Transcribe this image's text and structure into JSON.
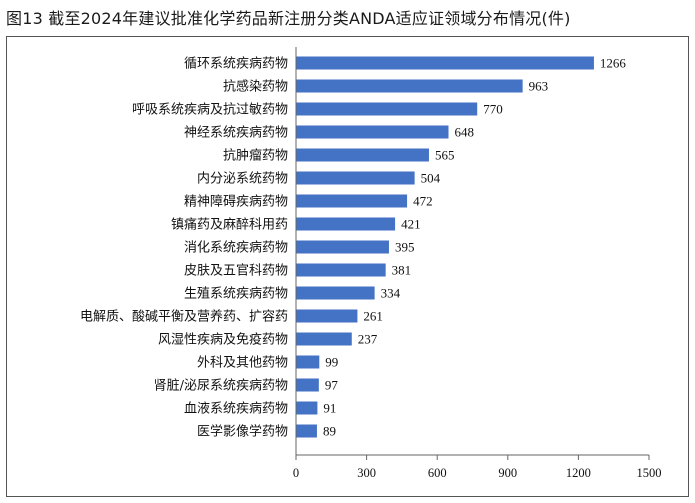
{
  "figure": {
    "title": "图13    截至2024年建议批准化学药品新注册分类ANDA适应证领域分布情况(件)"
  },
  "chart_data": {
    "type": "bar",
    "orientation": "horizontal",
    "categories": [
      "循环系统疾病药物",
      "抗感染药物",
      "呼吸系统疾病及抗过敏药物",
      "神经系统疾病药物",
      "抗肿瘤药物",
      "内分泌系统药物",
      "精神障碍疾病药物",
      "镇痛药及麻醉科用药",
      "消化系统疾病药物",
      "皮肤及五官科药物",
      "生殖系统疾病药物",
      "电解质、酸碱平衡及营养药、扩容药",
      "风湿性疾病及免疫药物",
      "外科及其他药物",
      "肾脏/泌尿系统疾病药物",
      "血液系统疾病药物",
      "医学影像学药物"
    ],
    "values": [
      1266,
      963,
      770,
      648,
      565,
      504,
      472,
      421,
      395,
      381,
      334,
      261,
      237,
      99,
      97,
      91,
      89
    ],
    "xlim": [
      0,
      1500
    ],
    "xticks": [
      0,
      300,
      600,
      900,
      1200,
      1500
    ],
    "bar_color": "#4472c4",
    "grid": false,
    "legend": "none"
  }
}
